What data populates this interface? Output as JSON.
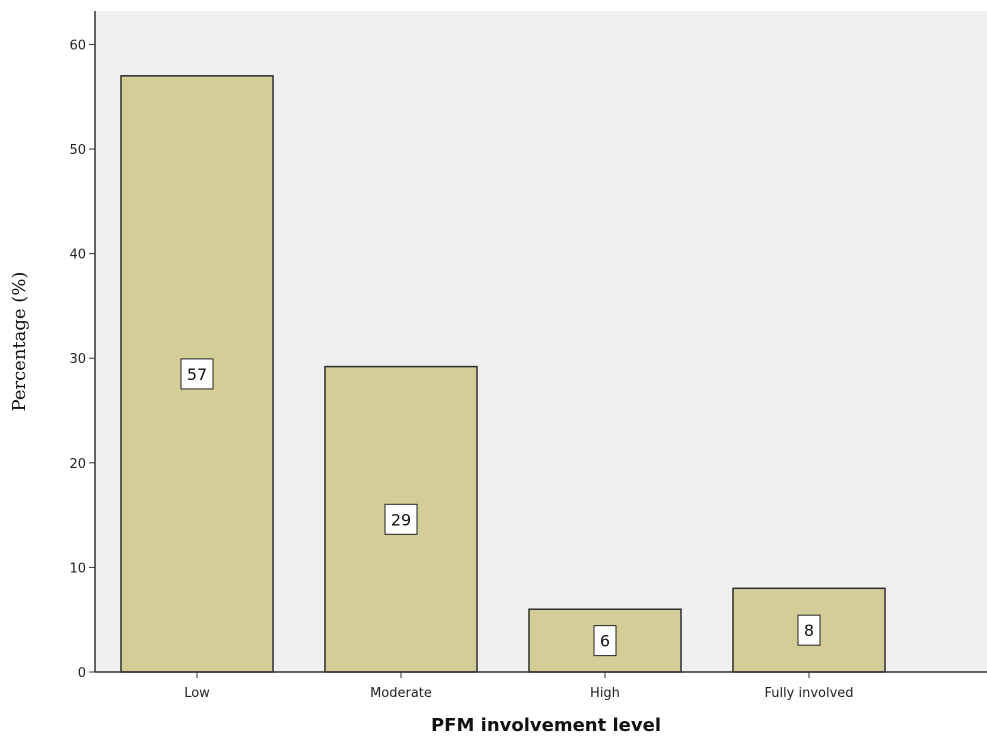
{
  "chart_data": {
    "type": "bar",
    "categories": [
      "Low",
      "Moderate",
      "High",
      "Fully involved"
    ],
    "values": [
      57,
      29.2,
      6,
      8
    ],
    "data_labels": [
      "57",
      "29",
      "6",
      "8"
    ],
    "xlabel": "PFM involvement level",
    "ylabel": "Percentage (%)",
    "ylim": [
      0,
      63.2
    ],
    "yticks": [
      "0",
      "10",
      "20",
      "30",
      "40",
      "50",
      "60"
    ],
    "ytick_values": [
      0,
      10,
      20,
      30,
      40,
      50,
      60
    ],
    "grid": false,
    "colors": {
      "bar_fill": "#d3cd97",
      "bar_stroke": "#2e2e2e",
      "plot_background": "#f0f0f0",
      "axis": "#333333"
    }
  }
}
